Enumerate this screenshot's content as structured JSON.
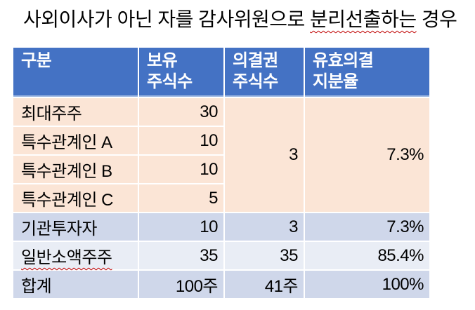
{
  "title": {
    "pre": "사외이사가 아닌 자를 감사위원으로 ",
    "misspelled": "분리선출하는",
    "post": " 경우"
  },
  "table": {
    "headers": {
      "category": "구분",
      "held_shares": "보유\n주식수",
      "voting_shares": "의결권\n주식수",
      "effective_ratio": "유효의결\n지분율"
    },
    "rows": [
      {
        "category": "최대주주",
        "held": "30",
        "voting": "3",
        "effective": "7.3%"
      },
      {
        "category": "특수관계인 A",
        "held": "10"
      },
      {
        "category": "특수관계인 B",
        "held": "10"
      },
      {
        "category": "특수관계인 C",
        "held": "5"
      },
      {
        "category": "기관투자자",
        "held": "10",
        "voting": "3",
        "effective": "7.3%"
      },
      {
        "category": "일반소액주주",
        "held": "35",
        "voting": "35",
        "effective": "85.4%"
      },
      {
        "category": "합계",
        "held": "100주",
        "voting": "41주",
        "effective": "100%"
      }
    ]
  },
  "colors": {
    "header_bg": "#4472C4",
    "header_text": "#FFFFFF",
    "header_underline": "#9DB7E2",
    "row_peach": "#FBE5D6",
    "row_lavender": "#CFD7EA",
    "row_lavender_light": "#E9EDF5",
    "spellcheck_red": "#C00000",
    "text": "#000000"
  }
}
